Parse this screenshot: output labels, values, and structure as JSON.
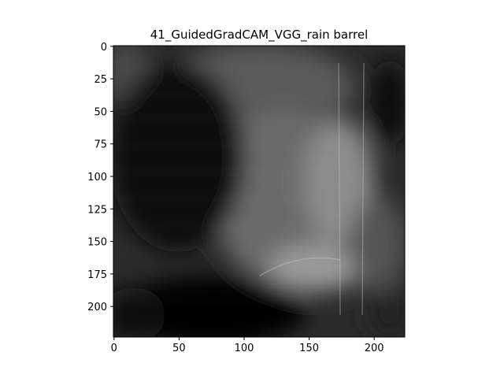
{
  "chart_data": {
    "type": "heatmap",
    "title": "41_GuidedGradCAM_VGG_rain barrel",
    "xlabel": "",
    "ylabel": "",
    "xlim": [
      -0.5,
      223.5
    ],
    "ylim": [
      223.5,
      -0.5
    ],
    "xticks": [
      0,
      50,
      100,
      150,
      200
    ],
    "yticks": [
      0,
      25,
      50,
      75,
      100,
      125,
      150,
      175,
      200
    ],
    "grid": false,
    "colormap": "grayscale"
  }
}
